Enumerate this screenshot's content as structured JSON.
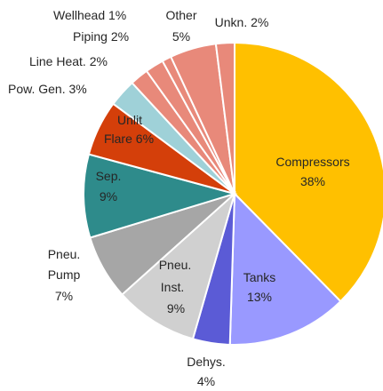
{
  "chart_data": {
    "type": "pie",
    "start_angle_deg": 0,
    "direction": "clockwise",
    "slices": [
      {
        "id": "compressors",
        "label": "Compressors",
        "value_label": "38%",
        "value": 38,
        "color": "#FFC000"
      },
      {
        "id": "tanks",
        "label": "Tanks",
        "value_label": "13%",
        "value": 13,
        "color": "#9999FF"
      },
      {
        "id": "dehys",
        "label": "Dehys.",
        "value_label": "4%",
        "value": 4,
        "color": "#5B5BD6"
      },
      {
        "id": "pneu-inst",
        "label": "Pneu.\nInst.",
        "value_label": "9%",
        "value": 9,
        "color": "#D0D0D0"
      },
      {
        "id": "pneu-pump",
        "label": "Pneu.\nPump",
        "value_label": "7%",
        "value": 7,
        "color": "#A6A6A6"
      },
      {
        "id": "sep",
        "label": "Sep.",
        "value_label": "9%",
        "value": 9,
        "color": "#2E8B8B"
      },
      {
        "id": "unlit-flare",
        "label": "Unlit\nFlare",
        "value_label": "6%",
        "value": 6,
        "color": "#D43F0A"
      },
      {
        "id": "pow-gen",
        "label": "Pow. Gen.",
        "value_label": "3%",
        "value": 3,
        "color": "#9FD1D8"
      },
      {
        "id": "line-heat",
        "label": "Line Heat.",
        "value_label": "2%",
        "value": 2,
        "color": "#E8897A"
      },
      {
        "id": "piping",
        "label": "Piping",
        "value_label": "2%",
        "value": 2,
        "color": "#E8897A"
      },
      {
        "id": "wellhead",
        "label": "Wellhead",
        "value_label": "1%",
        "value": 1,
        "color": "#E8897A"
      },
      {
        "id": "other",
        "label": "Other",
        "value_label": "5%",
        "value": 5,
        "color": "#E8897A"
      },
      {
        "id": "unkn",
        "label": "Unkn.",
        "value_label": "2%",
        "value": 2,
        "color": "#E8897A"
      }
    ]
  }
}
